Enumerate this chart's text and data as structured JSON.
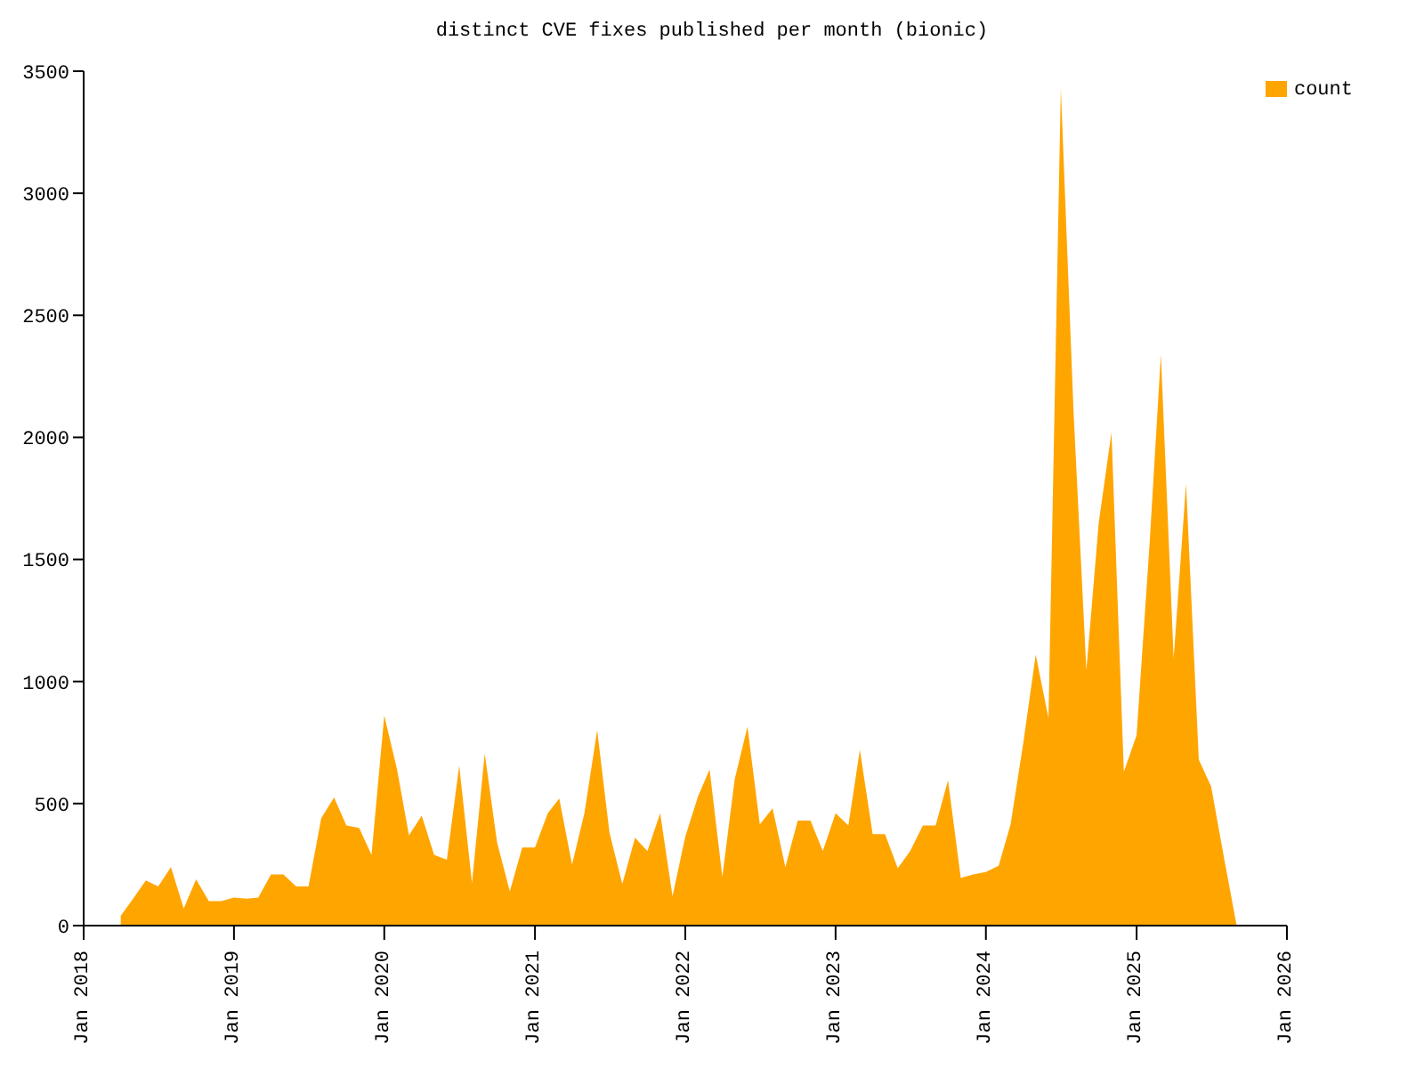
{
  "chart_data": {
    "type": "area",
    "title": "distinct CVE fixes published per month (bionic)",
    "x": [
      "2018-04",
      "2018-05",
      "2018-06",
      "2018-07",
      "2018-08",
      "2018-09",
      "2018-10",
      "2018-11",
      "2018-12",
      "2019-01",
      "2019-02",
      "2019-03",
      "2019-04",
      "2019-05",
      "2019-06",
      "2019-07",
      "2019-08",
      "2019-09",
      "2019-10",
      "2019-11",
      "2019-12",
      "2020-01",
      "2020-02",
      "2020-03",
      "2020-04",
      "2020-05",
      "2020-06",
      "2020-07",
      "2020-08",
      "2020-09",
      "2020-10",
      "2020-11",
      "2020-12",
      "2021-01",
      "2021-02",
      "2021-03",
      "2021-04",
      "2021-05",
      "2021-06",
      "2021-07",
      "2021-08",
      "2021-09",
      "2021-10",
      "2021-11",
      "2021-12",
      "2022-01",
      "2022-02",
      "2022-03",
      "2022-04",
      "2022-05",
      "2022-06",
      "2022-07",
      "2022-08",
      "2022-09",
      "2022-10",
      "2022-11",
      "2022-12",
      "2023-01",
      "2023-02",
      "2023-03",
      "2023-04",
      "2023-05",
      "2023-06",
      "2023-07",
      "2023-08",
      "2023-09",
      "2023-10",
      "2023-11",
      "2023-12",
      "2024-01",
      "2024-02",
      "2024-03",
      "2024-04",
      "2024-05",
      "2024-06",
      "2024-07",
      "2024-08",
      "2024-09",
      "2024-10",
      "2024-11",
      "2024-12",
      "2025-01",
      "2025-02",
      "2025-03",
      "2025-04",
      "2025-05",
      "2025-06",
      "2025-07",
      "2025-08",
      "2025-09"
    ],
    "series": [
      {
        "name": "count",
        "color": "#ffa500",
        "values": [
          40,
          110,
          185,
          160,
          240,
          70,
          190,
          100,
          100,
          115,
          110,
          115,
          210,
          210,
          160,
          160,
          440,
          525,
          410,
          400,
          290,
          860,
          640,
          370,
          450,
          290,
          270,
          655,
          175,
          705,
          340,
          140,
          320,
          320,
          460,
          520,
          250,
          460,
          800,
          380,
          170,
          360,
          305,
          460,
          120,
          365,
          530,
          640,
          200,
          600,
          815,
          415,
          480,
          240,
          430,
          430,
          305,
          460,
          410,
          720,
          375,
          375,
          235,
          305,
          410,
          410,
          595,
          195,
          210,
          220,
          245,
          415,
          750,
          1110,
          850,
          3430,
          2100,
          1045,
          1650,
          2020,
          630,
          780,
          1550,
          2340,
          1095,
          1810,
          680,
          570,
          280,
          0
        ]
      }
    ],
    "xlim": [
      "2018-01",
      "2026-01"
    ],
    "xticks": [
      {
        "value": "2018-01",
        "label": "Jan 2018"
      },
      {
        "value": "2019-01",
        "label": "Jan 2019"
      },
      {
        "value": "2020-01",
        "label": "Jan 2020"
      },
      {
        "value": "2021-01",
        "label": "Jan 2021"
      },
      {
        "value": "2022-01",
        "label": "Jan 2022"
      },
      {
        "value": "2023-01",
        "label": "Jan 2023"
      },
      {
        "value": "2024-01",
        "label": "Jan 2024"
      },
      {
        "value": "2025-01",
        "label": "Jan 2025"
      },
      {
        "value": "2026-01",
        "label": "Jan 2026"
      }
    ],
    "ylim": [
      0,
      3500
    ],
    "yticks": [
      0,
      500,
      1000,
      1500,
      2000,
      2500,
      3000,
      3500
    ],
    "legend": "top right"
  }
}
